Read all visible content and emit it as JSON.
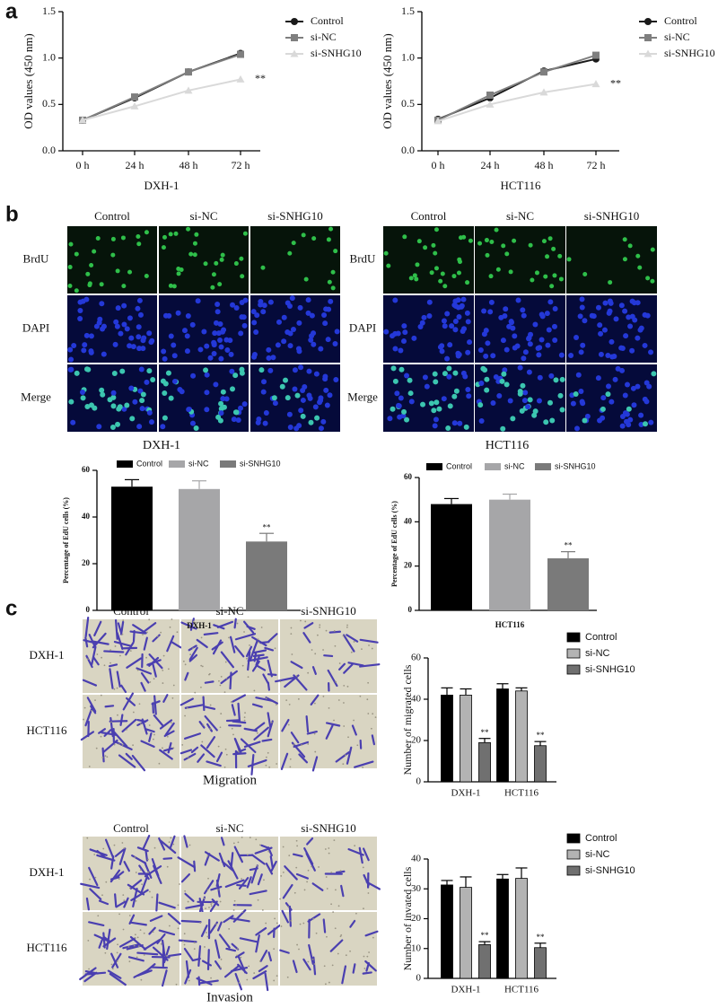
{
  "panel_labels": [
    "a",
    "b",
    "c"
  ],
  "image_grids": [
    {
      "columns": [
        "Control",
        "si-NC",
        "si-SNHG10"
      ],
      "rows": [
        "BrdU",
        "DAPI",
        "Merge"
      ]
    },
    {
      "columns": [
        "Control",
        "si-NC",
        "si-SNHG10"
      ],
      "rows": [
        "BrdU",
        "DAPI",
        "Merge"
      ]
    },
    {
      "columns": [
        "Control",
        "si-NC",
        "si-SNHG10"
      ],
      "rows": [
        "DXH-1",
        "HCT116"
      ],
      "caption": "Migration"
    },
    {
      "columns": [
        "Control",
        "si-NC",
        "si-SNHG10"
      ],
      "rows": [
        "DXH-1",
        "HCT116"
      ],
      "caption": "Invasion"
    }
  ],
  "chart_data": [
    {
      "type": "line",
      "xlabel": "DXH-1",
      "ylabel": "OD values (450 nm)",
      "categories": [
        "0 h",
        "24 h",
        "48 h",
        "72 h"
      ],
      "ylim": [
        0,
        1.5
      ],
      "yticks": [
        {
          "value": 0,
          "label": "0.0"
        },
        0.5,
        {
          "value": 1,
          "label": "1.0"
        },
        1.5
      ],
      "series": [
        {
          "name": "Control",
          "color": "#1a1a1a",
          "marker": "circle",
          "values": [
            0.33,
            0.57,
            0.85,
            1.05
          ]
        },
        {
          "name": "si-NC",
          "color": "#7f7f7f",
          "marker": "square",
          "values": [
            0.33,
            0.58,
            0.85,
            1.04
          ]
        },
        {
          "name": "si-SNHG10",
          "color": "#d9d9d9",
          "marker": "triangle",
          "values": [
            0.33,
            0.48,
            0.65,
            0.77
          ],
          "annotation": "**"
        }
      ]
    },
    {
      "type": "line",
      "xlabel": "HCT116",
      "ylabel": "OD values (450 nm)",
      "categories": [
        "0 h",
        "24 h",
        "48 h",
        "72 h"
      ],
      "ylim": [
        0,
        1.5
      ],
      "yticks": [
        {
          "value": 0,
          "label": "0.0"
        },
        0.5,
        {
          "value": 1,
          "label": "1.0"
        },
        1.5
      ],
      "series": [
        {
          "name": "Control",
          "color": "#1a1a1a",
          "marker": "circle",
          "values": [
            0.34,
            0.57,
            0.86,
            0.99
          ]
        },
        {
          "name": "si-NC",
          "color": "#7f7f7f",
          "marker": "square",
          "values": [
            0.33,
            0.6,
            0.85,
            1.03
          ]
        },
        {
          "name": "si-SNHG10",
          "color": "#d9d9d9",
          "marker": "triangle",
          "values": [
            0.32,
            0.5,
            0.63,
            0.72
          ],
          "annotation": "**"
        }
      ]
    },
    {
      "type": "bar",
      "title": "DXH-1",
      "ylabel": "Percentage of EdU cells (%)",
      "categories": [
        "DXH-1"
      ],
      "ylim": [
        0,
        60
      ],
      "yticks": [
        0,
        20,
        40,
        60
      ],
      "series": [
        {
          "name": "Control",
          "color": "#000000",
          "values": [
            53
          ],
          "errors": [
            3
          ]
        },
        {
          "name": "si-NC",
          "color": "#a6a6a8",
          "values": [
            52
          ],
          "errors": [
            3.5
          ]
        },
        {
          "name": "si-SNHG10",
          "color": "#7a7a7a",
          "values": [
            29.5
          ],
          "errors": [
            3.5
          ],
          "annotation": "**"
        }
      ]
    },
    {
      "type": "bar",
      "title": "HCT116",
      "ylabel": "Percentage of EdU cells (%)",
      "categories": [
        "HCT116"
      ],
      "ylim": [
        0,
        60
      ],
      "yticks": [
        0,
        20,
        40,
        60
      ],
      "series": [
        {
          "name": "Control",
          "color": "#000000",
          "values": [
            48
          ],
          "errors": [
            2.5
          ]
        },
        {
          "name": "si-NC",
          "color": "#a6a6a8",
          "values": [
            50
          ],
          "errors": [
            2.5
          ]
        },
        {
          "name": "si-SNHG10",
          "color": "#7a7a7a",
          "values": [
            23.5
          ],
          "errors": [
            3
          ],
          "annotation": "**"
        }
      ]
    },
    {
      "type": "bar",
      "ylabel": "Number of migrated cells",
      "categories": [
        "DXH-1",
        "HCT116"
      ],
      "ylim": [
        0,
        60
      ],
      "yticks": [
        0,
        20,
        40,
        60
      ],
      "series": [
        {
          "name": "Control",
          "color": "#000000",
          "values": [
            42,
            45
          ],
          "errors": [
            3.5,
            2.5
          ]
        },
        {
          "name": "si-NC",
          "color": "#b3b3b3",
          "values": [
            42,
            44
          ],
          "errors": [
            3,
            1.5
          ]
        },
        {
          "name": "si-SNHG10",
          "color": "#707070",
          "values": [
            19,
            17.5
          ],
          "errors": [
            2,
            2
          ],
          "annotation": "**"
        }
      ]
    },
    {
      "type": "bar",
      "ylabel": "Number of invated cells",
      "categories": [
        "DXH-1",
        "HCT116"
      ],
      "ylim": [
        0,
        40
      ],
      "yticks": [
        0,
        10,
        20,
        30,
        40
      ],
      "series": [
        {
          "name": "Control",
          "color": "#000000",
          "values": [
            31.3,
            33.3
          ],
          "errors": [
            1.5,
            1.5
          ]
        },
        {
          "name": "si-NC",
          "color": "#b3b3b3",
          "values": [
            30.5,
            33.5
          ],
          "errors": [
            3.5,
            3.5
          ]
        },
        {
          "name": "si-SNHG10",
          "color": "#707070",
          "values": [
            11.3,
            10.3
          ],
          "errors": [
            1,
            1.5
          ],
          "annotation": "**"
        }
      ]
    }
  ]
}
